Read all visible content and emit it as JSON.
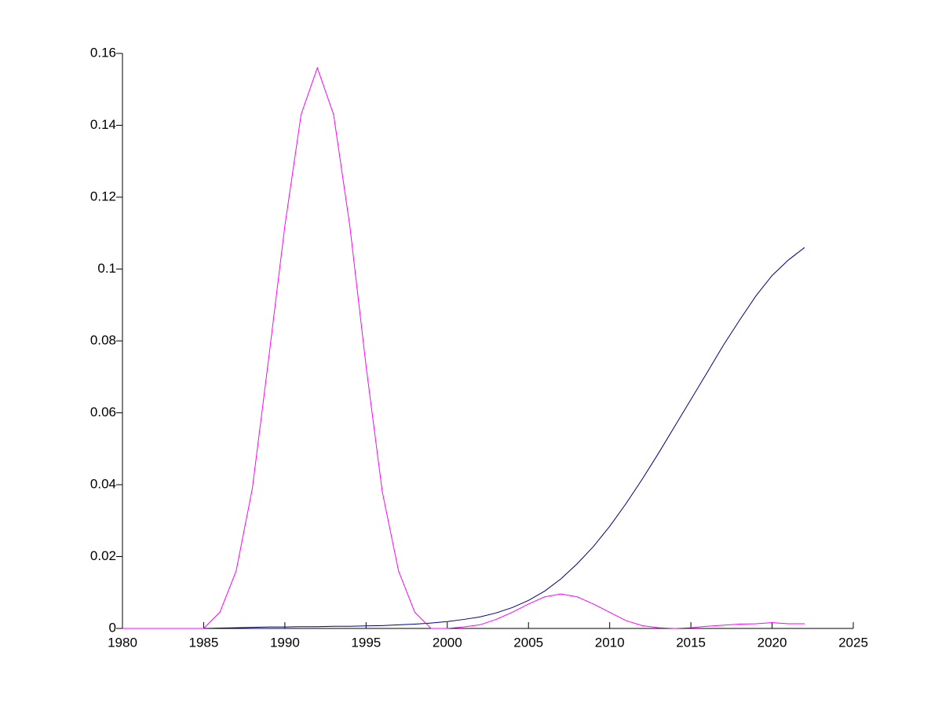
{
  "chart_data": {
    "type": "line",
    "x": [
      1980,
      1981,
      1982,
      1983,
      1984,
      1985,
      1986,
      1987,
      1988,
      1989,
      1990,
      1991,
      1992,
      1993,
      1994,
      1995,
      1996,
      1997,
      1998,
      1999,
      2000,
      2001,
      2002,
      2003,
      2004,
      2005,
      2006,
      2007,
      2008,
      2009,
      2010,
      2011,
      2012,
      2013,
      2014,
      2015,
      2016,
      2017,
      2018,
      2019,
      2020,
      2021,
      2022
    ],
    "series": [
      {
        "color": "#000080",
        "values": [
          0,
          0,
          0,
          0,
          0,
          0,
          0.0001,
          0.0002,
          0.0003,
          0.0004,
          0.0004,
          0.0005,
          0.0005,
          0.0006,
          0.0006,
          0.0007,
          0.0008,
          0.001,
          0.0012,
          0.0015,
          0.0019,
          0.0025,
          0.0032,
          0.0043,
          0.0058,
          0.0078,
          0.0104,
          0.0138,
          0.018,
          0.0228,
          0.0284,
          0.0347,
          0.0415,
          0.0487,
          0.0562,
          0.0637,
          0.0712,
          0.0788,
          0.0858,
          0.0925,
          0.0982,
          0.1025,
          0.106
        ]
      },
      {
        "color": "#ff00ff",
        "values": [
          0,
          0,
          0,
          0,
          0,
          0,
          0.0045,
          0.016,
          0.039,
          0.075,
          0.112,
          0.143,
          0.156,
          0.143,
          0.112,
          0.073,
          0.038,
          0.016,
          0.0045,
          0,
          0,
          0.0004,
          0.001,
          0.0025,
          0.0045,
          0.0068,
          0.0088,
          0.0096,
          0.0088,
          0.0068,
          0.0045,
          0.0022,
          0.0008,
          0.0002,
          0,
          0.0002,
          0.0006,
          0.0009,
          0.0012,
          0.0013,
          0.0016,
          0.0013,
          0.0013
        ]
      }
    ],
    "xlim": [
      1980,
      2025
    ],
    "xticks": [
      1980,
      1985,
      1990,
      1995,
      2000,
      2005,
      2010,
      2015,
      2020,
      2025
    ],
    "ylim": [
      0,
      0.16
    ],
    "yticks": [
      0,
      0.02,
      0.04,
      0.06,
      0.08,
      0.1,
      0.12,
      0.14,
      0.16
    ],
    "grid": false
  }
}
